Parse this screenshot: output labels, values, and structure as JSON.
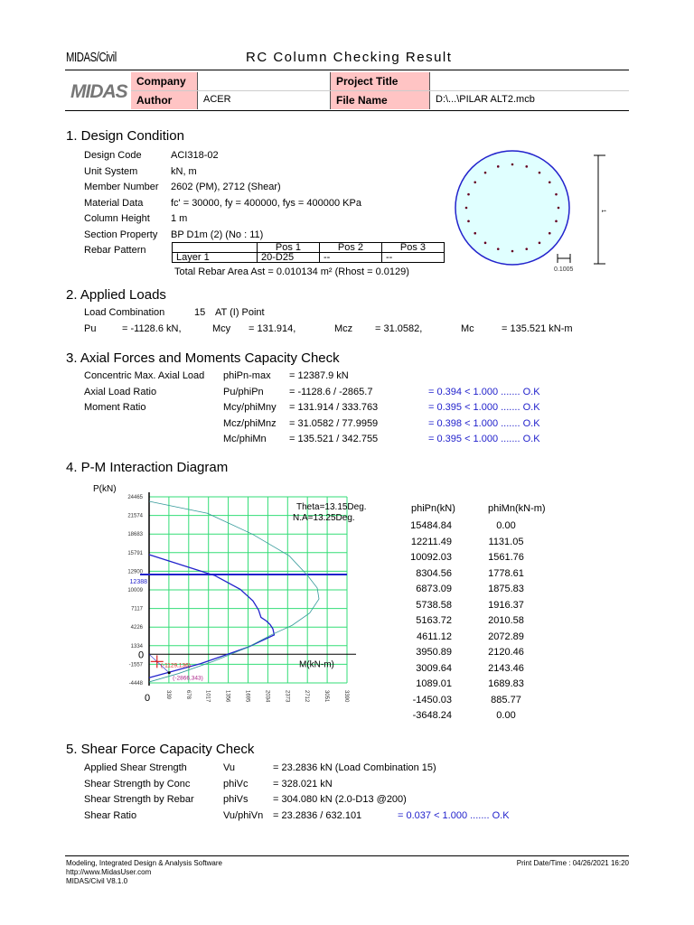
{
  "header": {
    "brand": "MIDAS/Civil",
    "title": "RC Column Checking Result",
    "logo": "MIDAS",
    "company_label": "Company",
    "company_value": "",
    "author_label": "Author",
    "author_value": "ACER",
    "project_label": "Project Title",
    "project_value": "",
    "file_label": "File Name",
    "file_value": "D:\\...\\PILAR ALT2.mcb",
    "label_bg": "#ffc4c4"
  },
  "design": {
    "heading": "1. Design Condition",
    "rows": [
      {
        "label": "Design Code",
        "value": "ACI318-02"
      },
      {
        "label": "Unit System",
        "value": "kN, m"
      },
      {
        "label": "Member Number",
        "value": "2602 (PM), 2712 (Shear)"
      },
      {
        "label": "Material Data",
        "value": "fc' = 30000,   fy = 400000,   fys = 400000 KPa"
      },
      {
        "label": "Column Height",
        "value": "1 m"
      },
      {
        "label": "Section Property",
        "value": "BP D1m (2) (No : 11)"
      },
      {
        "label": "Rebar Pattern",
        "value": ""
      }
    ],
    "rebar_table": {
      "headers": [
        "",
        "Pos 1",
        "Pos 2",
        "Pos 3"
      ],
      "rows": [
        [
          "Layer 1",
          "20-D25",
          "--",
          "--"
        ]
      ]
    },
    "total_rebar": "Total Rebar Area   Ast = 0.010134 m²   (Rhost = 0.0129)",
    "section_figure": {
      "height_label": "1",
      "cover_label": "0.1005",
      "bar_count": 20,
      "fill": "#e0ffff",
      "outline": "#2222cc",
      "bar_color": "#660022"
    }
  },
  "loads": {
    "heading": "2. Applied Loads",
    "combo_label": "Load Combination",
    "combo_value": "15",
    "combo_point": "AT (I) Point",
    "items": [
      {
        "label": "Pu",
        "value": "= -1128.6 kN,"
      },
      {
        "label": "Mcy",
        "value": "= 131.914,"
      },
      {
        "label": "Mcz",
        "value": "= 31.0582,"
      },
      {
        "label": "Mc",
        "value": "= 135.521 kN-m"
      }
    ]
  },
  "capacity": {
    "heading": "3. Axial Forces and Moments Capacity Check",
    "rows": [
      {
        "label": "Concentric Max. Axial Load",
        "sym": "phiPn-max",
        "calc": "= 12387.9  kN",
        "result": ""
      },
      {
        "label": "Axial Load Ratio",
        "sym": "Pu/phiPn",
        "calc": "= -1128.6 / -2865.7",
        "result": "= 0.394  < 1.000 ....... O.K"
      },
      {
        "label": "Moment Ratio",
        "sym": "Mcy/phiMny",
        "calc": "= 131.914 / 333.763",
        "result": "= 0.395  < 1.000 ....... O.K"
      },
      {
        "label": "",
        "sym": "Mcz/phiMnz",
        "calc": "= 31.0582 / 77.9959",
        "result": "= 0.398  < 1.000 ....... O.K"
      },
      {
        "label": "",
        "sym": "Mc/phiMn",
        "calc": "= 135.521 / 342.755",
        "result": "= 0.395  < 1.000 ....... O.K"
      }
    ]
  },
  "pm": {
    "heading": "4. P-M Interaction Diagram",
    "table_headers": [
      "phiPn(kN)",
      "phiMn(kN-m)"
    ],
    "table_rows": [
      [
        "15484.84",
        "0.00"
      ],
      [
        "12211.49",
        "1131.05"
      ],
      [
        "10092.03",
        "1561.76"
      ],
      [
        "8304.56",
        "1778.61"
      ],
      [
        "6873.09",
        "1875.83"
      ],
      [
        "5738.58",
        "1916.37"
      ],
      [
        "5163.72",
        "2010.58"
      ],
      [
        "4611.12",
        "2072.89"
      ],
      [
        "3950.89",
        "2120.46"
      ],
      [
        "3009.64",
        "2143.46"
      ],
      [
        "1089.01",
        "1689.83"
      ],
      [
        "-1450.03",
        "885.77"
      ],
      [
        "-3648.24",
        "0.00"
      ]
    ]
  },
  "chart_data": {
    "type": "line",
    "ylabel": "P(kN)",
    "xlabel": "M(kN-m)",
    "annotations": [
      "Theta=13.15Deg.",
      "N.A=13.25Deg."
    ],
    "origin_label": "0",
    "x_origin_label": "0",
    "xlim": [
      0,
      3390
    ],
    "ylim": [
      -4448,
      24465
    ],
    "x_ticks": [
      "339",
      "678",
      "1017",
      "1356",
      "1695",
      "2034",
      "2373",
      "2712",
      "3051",
      "3390"
    ],
    "x_tick_values": [
      339,
      678,
      1017,
      1356,
      1695,
      2034,
      2373,
      2712,
      3051,
      3390
    ],
    "y_ticks": [
      "24465",
      "21574",
      "18683",
      "15791",
      "12900",
      "10009",
      "7117",
      "4226",
      "1334",
      "-1557",
      "-4448"
    ],
    "y_tick_values": [
      24465,
      21574,
      18683,
      15791,
      12900,
      10009,
      7117,
      4226,
      1334,
      -1557,
      -4448
    ],
    "grid": true,
    "grid_color": "#33dd77",
    "max_axial_line": {
      "value": 12388,
      "label": "12388",
      "color": "#2222cc"
    },
    "series": [
      {
        "color": "#2222cc",
        "points": [
          [
            0,
            15484.84
          ],
          [
            1131.05,
            12211.49
          ],
          [
            1561.76,
            10092.03
          ],
          [
            1778.61,
            8304.56
          ],
          [
            1875.83,
            6873.09
          ],
          [
            1916.37,
            5738.58
          ],
          [
            2010.58,
            5163.72
          ],
          [
            2072.89,
            4611.12
          ],
          [
            2120.46,
            3950.89
          ],
          [
            2143.46,
            3009.64
          ],
          [
            1689.83,
            1089.01
          ],
          [
            885.77,
            -1450.03
          ],
          [
            0,
            -3648.24
          ]
        ]
      },
      {
        "color": "#339999",
        "points": [
          [
            0,
            23760
          ],
          [
            1000,
            21900
          ],
          [
            1780,
            18613
          ],
          [
            2400,
            15300
          ],
          [
            2709,
            12300
          ],
          [
            2880,
            10300
          ],
          [
            2910,
            8600
          ],
          [
            2750,
            6400
          ],
          [
            2450,
            4500
          ],
          [
            2090,
            3000
          ],
          [
            1670,
            1010
          ],
          [
            1100,
            -1100
          ],
          [
            500,
            -3000
          ],
          [
            0,
            -4300
          ]
        ]
      }
    ],
    "load_point": {
      "M": 135.5,
      "P": -1128.6,
      "label": "(-1129,136)",
      "color": "#dd2222"
    },
    "capacity_point": {
      "M": 343,
      "P": -2866,
      "label": "(-2866,343)",
      "color": "#aa2288"
    }
  },
  "shear": {
    "heading": "5. Shear Force Capacity Check",
    "rows": [
      {
        "label": "Applied Shear Strength",
        "sym": "Vu",
        "calc": "= 23.2836 kN   (Load Combination    15)",
        "result": ""
      },
      {
        "label": "Shear Strength by Conc",
        "sym": "phiVc",
        "calc": "= 328.021 kN",
        "result": ""
      },
      {
        "label": "Shear Strength by Rebar",
        "sym": "phiVs",
        "calc": "= 304.080 kN   (2.0-D13 @200)",
        "result": ""
      },
      {
        "label": "Shear Ratio",
        "sym": "Vu/phiVn",
        "calc": "= 23.2836 / 632.101",
        "result": "= 0.037  < 1.000 ....... O.K"
      }
    ]
  },
  "footer": {
    "line1": "Modeling, Integrated Design & Analysis Software",
    "line2": "http://www.MidasUser.com",
    "line3": "MIDAS/Civil V8.1.0",
    "print": "Print Date/Time : 04/26/2021 16:20"
  }
}
